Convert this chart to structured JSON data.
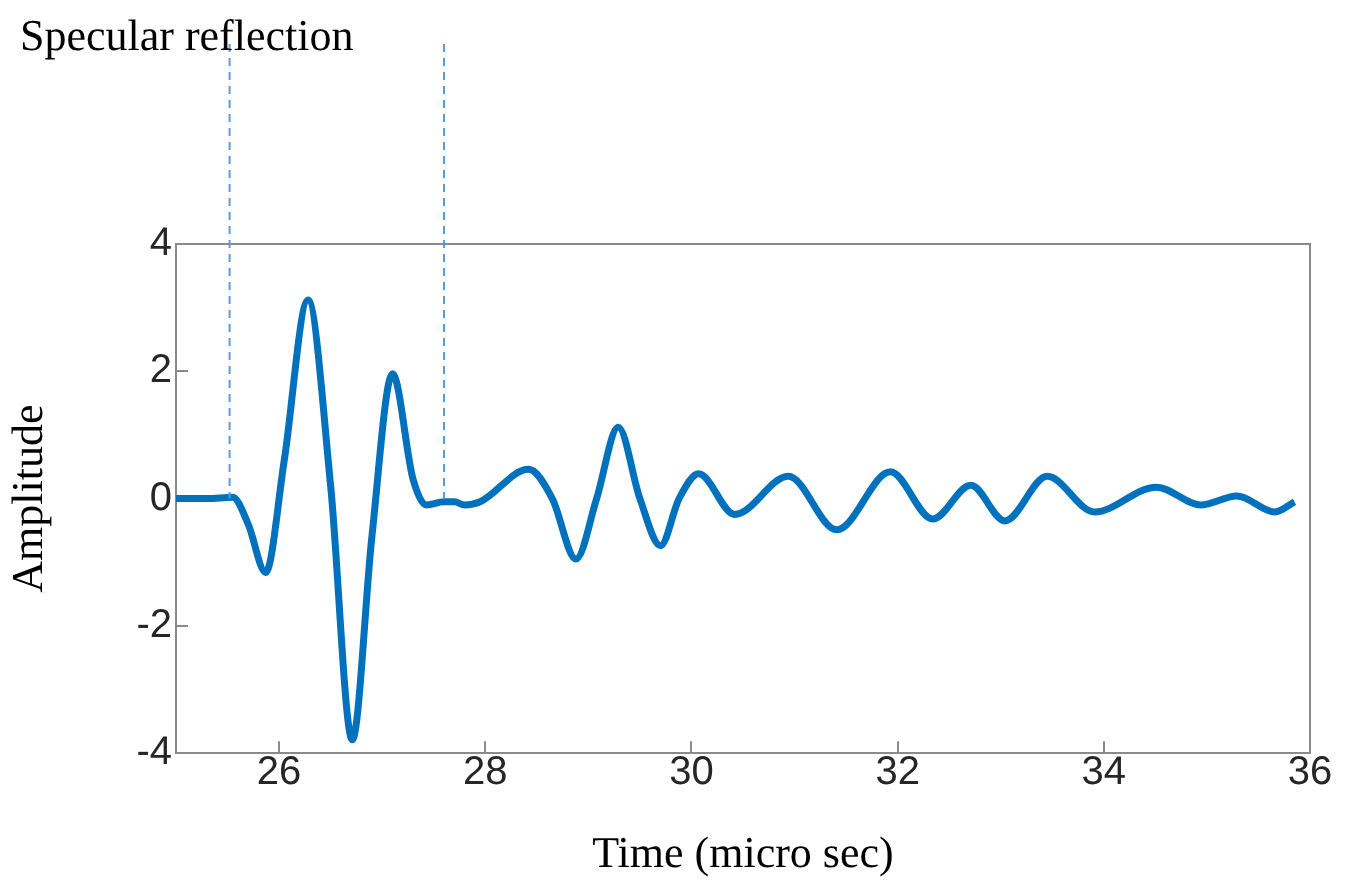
{
  "chart_data": {
    "type": "line",
    "xlabel": "Time (micro sec)",
    "ylabel": "Amplitude",
    "annotations": [
      "Specular reflection"
    ],
    "xlim": [
      25,
      36
    ],
    "xticks": [
      26,
      28,
      30,
      32,
      34,
      36
    ],
    "ylim": [
      -4,
      4
    ],
    "yticks": [
      -4,
      -2,
      0,
      2,
      4
    ],
    "grid": false,
    "legend": false,
    "marker": "none",
    "line_style": "solid",
    "ref_lines": [
      {
        "axis": "x",
        "value": 25.52,
        "label": null,
        "color": "#5b9bd5",
        "line_style": "dashed"
      },
      {
        "axis": "x",
        "value": 27.6,
        "label": null,
        "color": "#5b9bd5",
        "line_style": "dashed"
      }
    ],
    "series": [
      {
        "color": "#0072bd",
        "x": [
          25,
          25.3,
          25.55,
          25.7,
          25.87,
          26.05,
          26.28,
          26.5,
          26.71,
          26.9,
          27.1,
          27.3,
          27.43,
          27.6,
          27.7,
          27.8,
          27.95,
          28.42,
          28.65,
          28.88,
          29.08,
          29.29,
          29.5,
          29.7,
          29.88,
          30.07,
          30.42,
          30.94,
          31.41,
          31.93,
          32.34,
          32.71,
          33.04,
          33.45,
          33.91,
          34.51,
          34.94,
          35.29,
          35.66,
          35.85
        ],
        "values": [
          0,
          0,
          0.02,
          -0.4,
          -1.16,
          0.6,
          3.12,
          0.2,
          -3.79,
          -0.6,
          1.96,
          0.3,
          -0.1,
          -0.05,
          -0.05,
          -0.1,
          -0.05,
          0.46,
          0,
          -0.95,
          0,
          1.12,
          0,
          -0.74,
          0,
          0.39,
          -0.25,
          0.35,
          -0.49,
          0.42,
          -0.32,
          0.21,
          -0.35,
          0.35,
          -0.21,
          0.18,
          -0.1,
          0.04,
          -0.21,
          -0.05
        ]
      }
    ]
  }
}
